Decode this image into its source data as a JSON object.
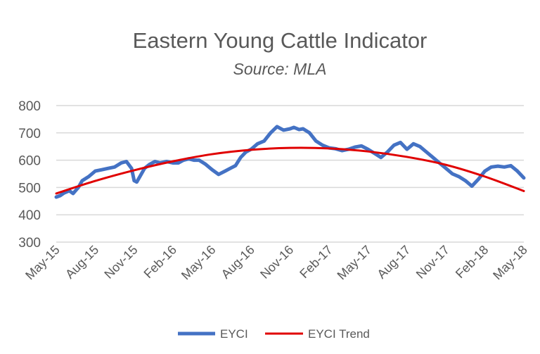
{
  "chart_data": {
    "type": "line",
    "title": "Eastern Young Cattle Indicator",
    "subtitle": "Source: MLA",
    "xlabel": "",
    "ylabel": "",
    "ylim": [
      300,
      800
    ],
    "y_ticks": [
      "300",
      "400",
      "500",
      "600",
      "700",
      "800"
    ],
    "x_ticks": [
      "May-15",
      "Aug-15",
      "Nov-15",
      "Feb-16",
      "May-16",
      "Aug-16",
      "Nov-16",
      "Feb-17",
      "May-17",
      "Aug-17",
      "Nov-17",
      "Feb-18",
      "May-18"
    ],
    "grid": true,
    "legend_position": "bottom",
    "x_units": "months since May-15",
    "series": [
      {
        "name": "EYCI",
        "color": "#4472c4",
        "x": [
          0,
          0.3,
          0.6,
          1.0,
          1.3,
          1.7,
          2.0,
          2.5,
          3.0,
          3.5,
          4.0,
          4.5,
          5.0,
          5.4,
          5.8,
          6.0,
          6.2,
          6.5,
          6.8,
          7.2,
          7.6,
          8.0,
          8.5,
          9.0,
          9.4,
          9.8,
          10.2,
          10.6,
          11.0,
          11.5,
          12.0,
          12.5,
          13.0,
          13.4,
          13.8,
          14.2,
          14.6,
          15.0,
          15.5,
          16.0,
          16.5,
          17.0,
          17.5,
          18.0,
          18.3,
          18.7,
          19.0,
          19.5,
          20.0,
          20.5,
          21.0,
          21.5,
          22.0,
          22.5,
          23.0,
          23.5,
          24.0,
          24.5,
          25.0,
          25.5,
          26.0,
          26.5,
          27.0,
          27.5,
          28.0,
          28.5,
          29.0,
          29.5,
          30.0,
          30.5,
          31.0,
          31.5,
          32.0,
          32.5,
          33.0,
          33.5,
          34.0,
          34.5,
          35.0,
          35.5,
          35.8,
          36.0
        ],
        "values": [
          465,
          470,
          480,
          488,
          478,
          500,
          525,
          540,
          560,
          565,
          570,
          575,
          590,
          595,
          570,
          525,
          520,
          545,
          570,
          585,
          595,
          590,
          595,
          590,
          590,
          600,
          605,
          600,
          600,
          585,
          565,
          548,
          560,
          570,
          580,
          610,
          630,
          640,
          660,
          670,
          700,
          723,
          710,
          715,
          720,
          712,
          715,
          700,
          670,
          655,
          645,
          642,
          635,
          640,
          648,
          652,
          640,
          625,
          610,
          630,
          655,
          665,
          640,
          660,
          650,
          630,
          610,
          590,
          570,
          550,
          540,
          525,
          505,
          530,
          560,
          575,
          578,
          575,
          580,
          560,
          545,
          535
        ]
      },
      {
        "name": "EYCI Trend",
        "color": "#e00000",
        "x": [
          0,
          3,
          6,
          9,
          12,
          15,
          18,
          21,
          24,
          27,
          30,
          33,
          36
        ],
        "values": [
          478,
          524,
          563,
          596,
          622,
          638,
          645,
          643,
          632,
          612,
          583,
          540,
          487
        ]
      }
    ]
  }
}
